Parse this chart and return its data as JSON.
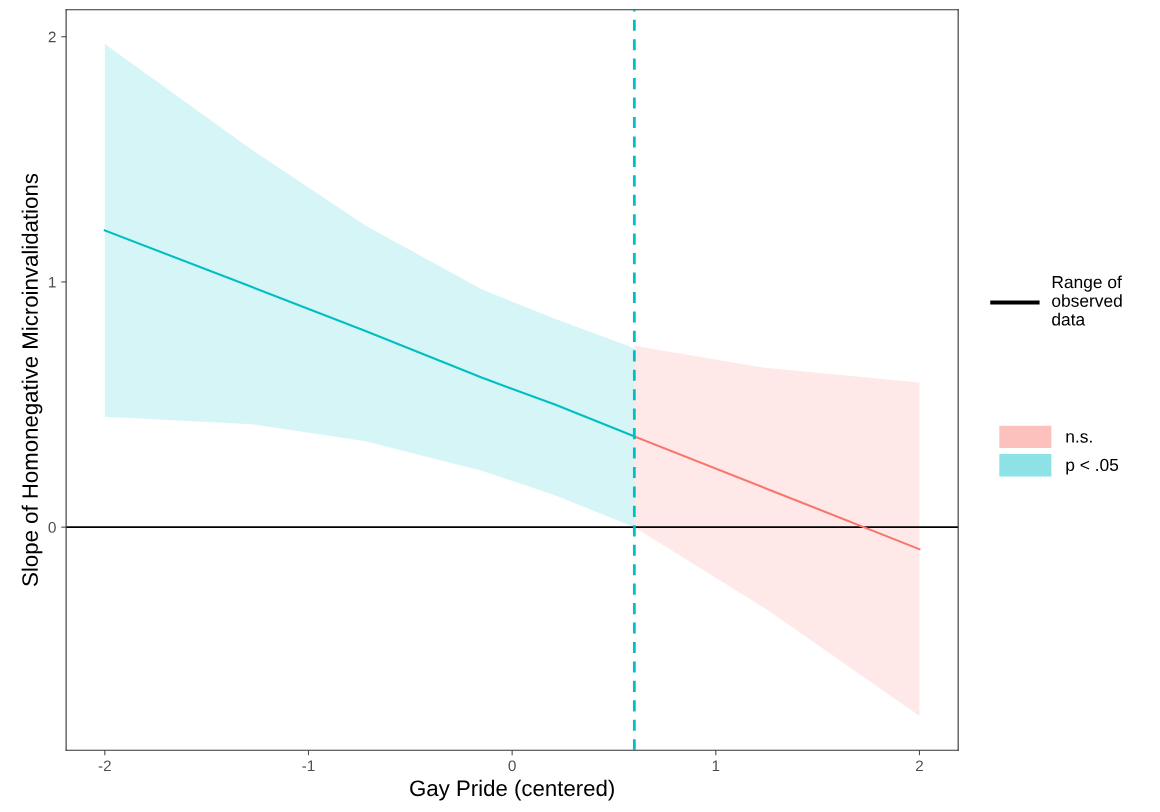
{
  "chart_data": {
    "type": "line",
    "xlabel": "Gay Pride (centered)",
    "ylabel": "Slope of Homonegative Microinvalidations",
    "series": [
      {
        "name": "p < .05",
        "color": "#00bfc4",
        "x": [
          -2,
          -1.28,
          -0.72,
          -0.15,
          0.21,
          0.6
        ],
        "values": [
          1.21,
          0.98,
          0.8,
          0.61,
          0.5,
          0.37
        ],
        "lower": [
          0.45,
          0.42,
          0.35,
          0.23,
          0.13,
          0.0
        ],
        "upper": [
          1.97,
          1.54,
          1.23,
          0.97,
          0.85,
          0.73
        ]
      },
      {
        "name": "n.s.",
        "color": "#f8766d",
        "x": [
          0.6,
          1.24,
          2
        ],
        "values": [
          0.37,
          0.16,
          -0.09
        ],
        "lower": [
          0.0,
          -0.33,
          -0.77
        ],
        "upper": [
          0.74,
          0.65,
          0.59
        ]
      }
    ],
    "ref_lines": [
      {
        "axis": "y",
        "value": 0,
        "label": "Range of observed data",
        "color": "#000000",
        "line_style": "solid"
      },
      {
        "axis": "x",
        "value": 0.6,
        "color": "#00bfc4",
        "line_style": "dashed"
      }
    ],
    "xlim": [
      -2.19,
      2.19
    ],
    "ylim": [
      -0.91,
      2.11
    ],
    "xticks": [
      -2,
      -1,
      0,
      1,
      2
    ],
    "yticks": [
      0,
      1,
      2
    ],
    "grid": false,
    "legend": "right",
    "marker": "none",
    "line_style": "solid"
  }
}
